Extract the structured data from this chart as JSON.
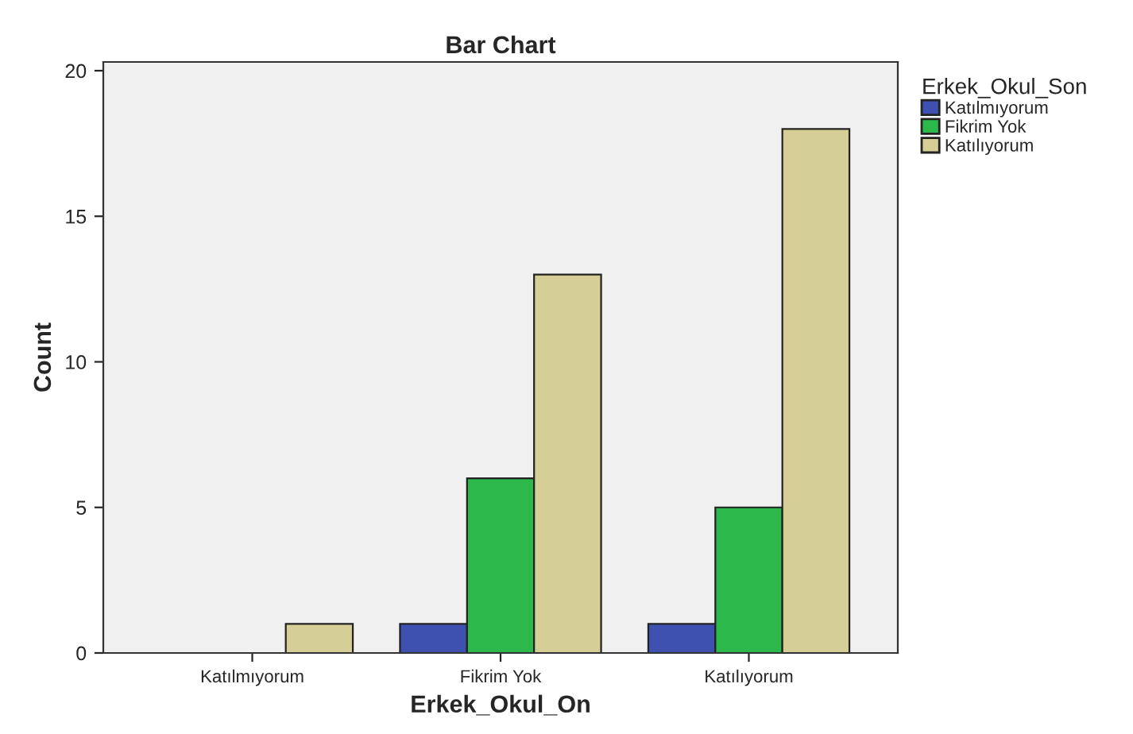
{
  "chart_data": {
    "type": "bar",
    "title": "Bar Chart",
    "xlabel": "Erkek_Okul_On",
    "ylabel": "Count",
    "legend_title": "Erkek_Okul_Son",
    "categories": [
      "Katılmıyorum",
      "Fikrim Yok",
      "Katılıyorum"
    ],
    "series": [
      {
        "name": "Katılmıyorum",
        "color": "#3f51b0",
        "values": [
          null,
          1,
          1
        ]
      },
      {
        "name": "Fikrim Yok",
        "color": "#2db84c",
        "values": [
          null,
          6,
          5
        ]
      },
      {
        "name": "Katılıyorum",
        "color": "#d5cf97",
        "values": [
          1,
          13,
          18
        ]
      }
    ],
    "ylim": [
      0,
      20.3
    ],
    "yticks": [
      0,
      5,
      10,
      15,
      20
    ],
    "grid": false,
    "legend": "top right"
  }
}
